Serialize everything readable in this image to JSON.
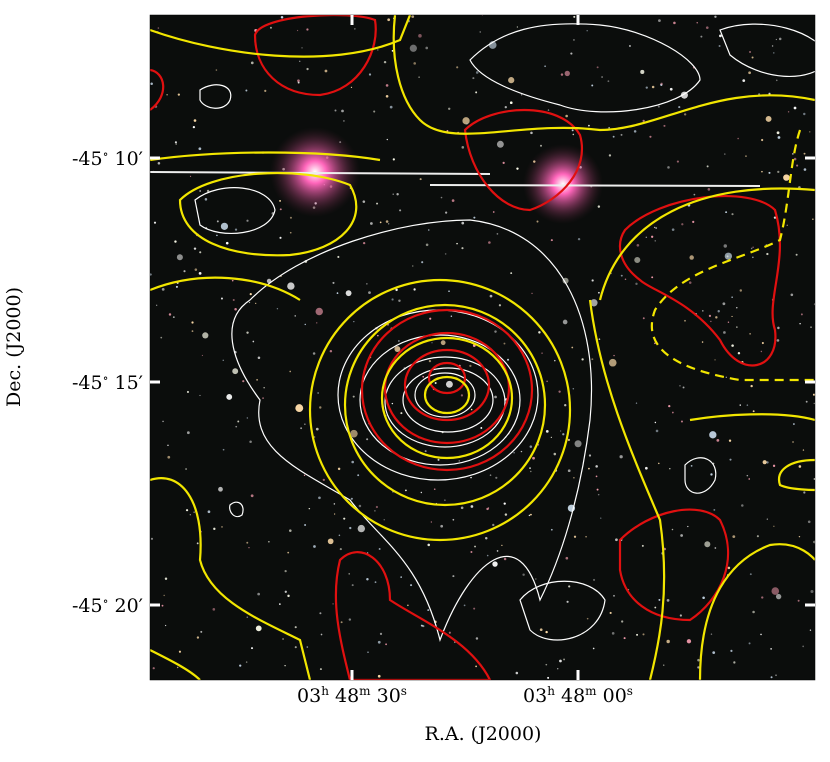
{
  "axes": {
    "x_label": "R.A. (J2000)",
    "y_label": "Dec. (J2000)",
    "x_ticks": [
      {
        "parts": [
          "03",
          "h",
          " 48",
          "m",
          " 30",
          "s"
        ]
      },
      {
        "parts": [
          "03",
          "h",
          " 48",
          "m",
          " 00",
          "s"
        ]
      }
    ],
    "y_ticks": [
      {
        "parts": [
          "-45",
          "∘",
          " 10",
          "′"
        ]
      },
      {
        "parts": [
          "-45",
          "∘",
          " 15",
          "′"
        ]
      },
      {
        "parts": [
          "-45",
          "∘",
          " 20",
          "′"
        ]
      }
    ]
  }
}
